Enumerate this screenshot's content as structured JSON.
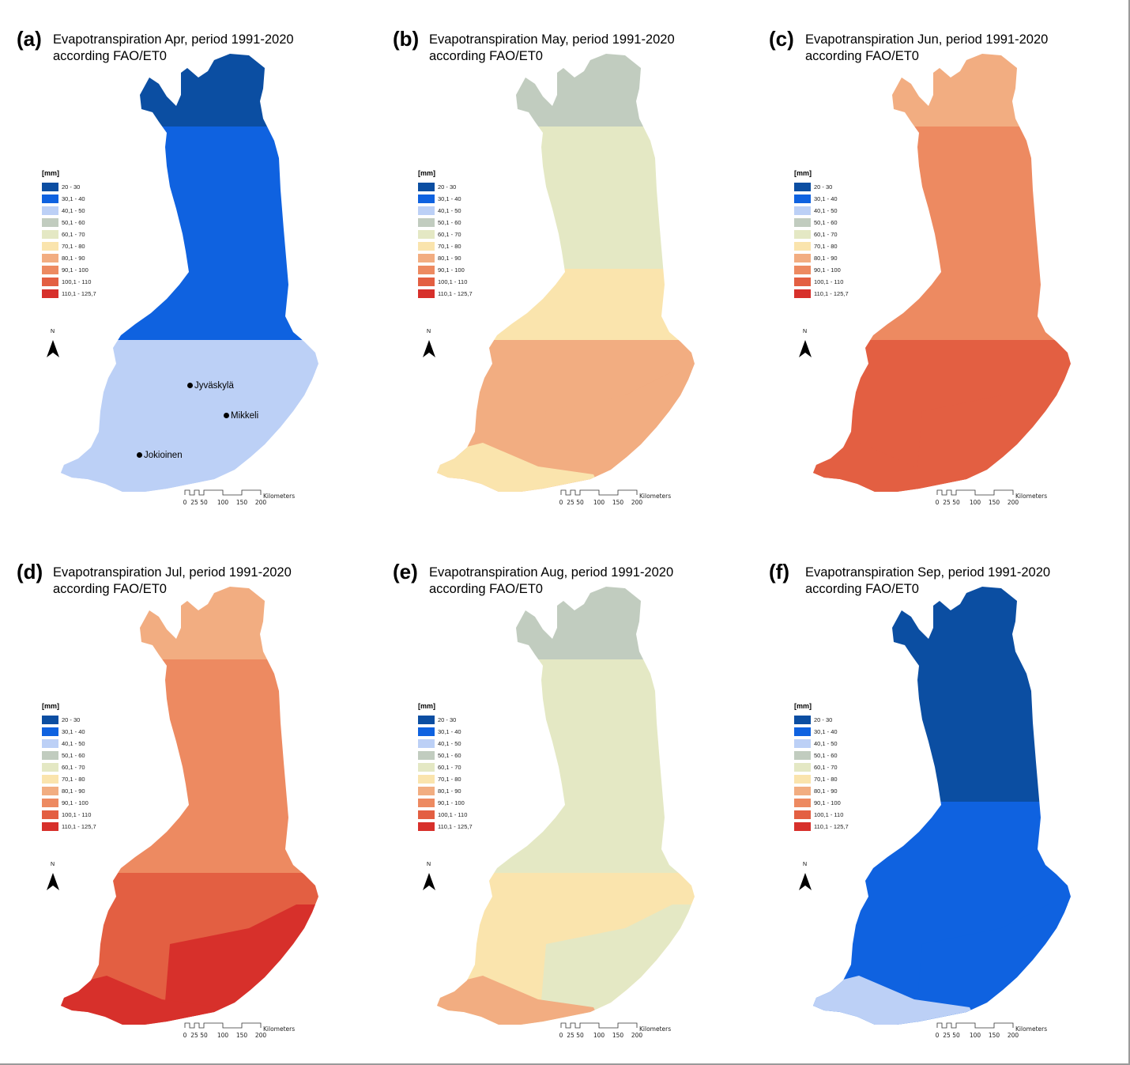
{
  "legend": {
    "unit": "[mm]",
    "classes": [
      {
        "label": "20 - 30",
        "color": "#0b4ea2"
      },
      {
        "label": "30,1 - 40",
        "color": "#0f62e0"
      },
      {
        "label": "40,1 - 50",
        "color": "#bcd0f6"
      },
      {
        "label": "50,1 - 60",
        "color": "#c1ccbf"
      },
      {
        "label": "60,1 - 70",
        "color": "#e4e8c4"
      },
      {
        "label": "70,1 - 80",
        "color": "#fae4ad"
      },
      {
        "label": "80,1 - 90",
        "color": "#f2ad81"
      },
      {
        "label": "90,1 - 100",
        "color": "#ed8a61"
      },
      {
        "label": "100,1 - 110",
        "color": "#e35f42"
      },
      {
        "label": "110,1 - 125,7",
        "color": "#d7302b"
      }
    ]
  },
  "north_label": "N",
  "scalebar": {
    "ticks": [
      "0",
      "25",
      "50",
      "100",
      "150",
      "200"
    ],
    "unit": "Kilometers"
  },
  "cities": [
    {
      "name": "Jyväskylä"
    },
    {
      "name": "Mikkeli"
    },
    {
      "name": "Jokioinen"
    }
  ],
  "panels": [
    {
      "letter": "(a)",
      "title_line1": "Evapotranspiration Apr, period 1991-2020",
      "title_line2": "according FAO/ET0",
      "zones": {
        "north": "#0b4ea2",
        "upper": "#0f62e0",
        "middle": "#0f62e0",
        "south": "#bcd0f6",
        "southeast": "#bcd0f6",
        "coast": "#bcd0f6"
      }
    },
    {
      "letter": "(b)",
      "title_line1": "Evapotranspiration May, period 1991-2020",
      "title_line2": "according FAO/ET0",
      "zones": {
        "north": "#c1ccbf",
        "upper": "#e4e8c4",
        "middle": "#fae4ad",
        "south": "#f2ad81",
        "southeast": "#f2ad81",
        "coast": "#fae4ad"
      }
    },
    {
      "letter": "(c)",
      "title_line1": "Evapotranspiration Jun, period 1991-2020",
      "title_line2": "according FAO/ET0",
      "zones": {
        "north": "#f2ad81",
        "upper": "#ed8a61",
        "middle": "#ed8a61",
        "south": "#e35f42",
        "southeast": "#e35f42",
        "coast": "#e35f42"
      }
    },
    {
      "letter": "(d)",
      "title_line1": "Evapotranspiration Jul, period 1991-2020",
      "title_line2": "according FAO/ET0",
      "zones": {
        "north": "#f2ad81",
        "upper": "#ed8a61",
        "middle": "#ed8a61",
        "south": "#e35f42",
        "southeast": "#d7302b",
        "coast": "#d7302b"
      }
    },
    {
      "letter": "(e)",
      "title_line1": "Evapotranspiration Aug, period 1991-2020",
      "title_line2": "according FAO/ET0",
      "zones": {
        "north": "#c1ccbf",
        "upper": "#e4e8c4",
        "middle": "#e4e8c4",
        "south": "#fae4ad",
        "southeast": "#e4e8c4",
        "coast": "#f2ad81"
      }
    },
    {
      "letter": "(f)",
      "title_line1": "Evapotranspiration Sep, period 1991-2020",
      "title_line2": "according FAO/ET0",
      "zones": {
        "north": "#0b4ea2",
        "upper": "#0b4ea2",
        "middle": "#0f62e0",
        "south": "#0f62e0",
        "southeast": "#0f62e0",
        "coast": "#bcd0f6"
      }
    }
  ]
}
